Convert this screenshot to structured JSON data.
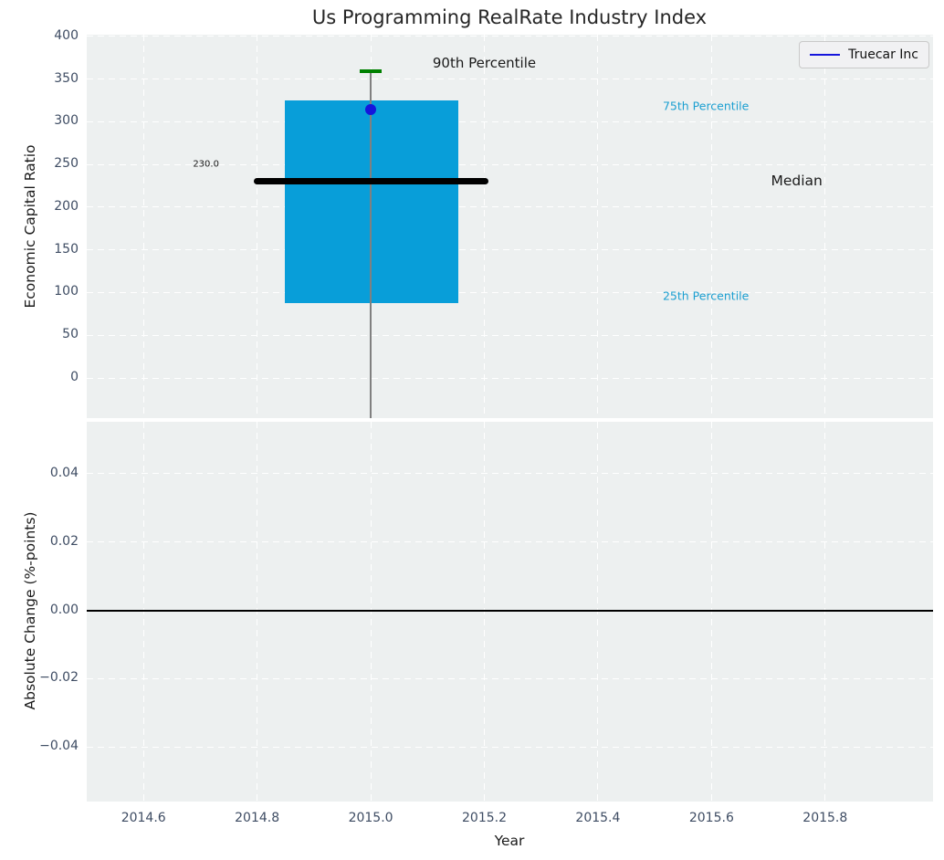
{
  "title": "Us Programming RealRate Industry Index",
  "legend": {
    "label": "Truecar Inc"
  },
  "colors": {
    "axes_background": "#edf0f0",
    "grid": "#ffffff",
    "box_fill": "#089ed9",
    "median_line": "#000000",
    "percentile_cap": "#008000",
    "whisker": "#808080",
    "company_dot": "#1515dc",
    "legend_line": "#1515dc",
    "tick_label": "#3e4c63",
    "percentile_label": "#1b9fd1",
    "text": "#1a1a1a",
    "zero_line": "#000000"
  },
  "chart_data": [
    {
      "type": "boxplot",
      "panel": "top",
      "title": "Us Programming RealRate Industry Index",
      "ylabel": "Economic Capital Ratio",
      "grid": "white dashed, on",
      "legend_position": "upper right",
      "xlim": [
        2014.5,
        2015.99
      ],
      "ylim": [
        -47,
        402
      ],
      "yticks": [
        {
          "value": 0,
          "label": "0"
        },
        {
          "value": 50,
          "label": "50"
        },
        {
          "value": 100,
          "label": "100"
        },
        {
          "value": 150,
          "label": "150"
        },
        {
          "value": 200,
          "label": "200"
        },
        {
          "value": 250,
          "label": "250"
        },
        {
          "value": 300,
          "label": "300"
        },
        {
          "value": 350,
          "label": "350"
        },
        {
          "value": 400,
          "label": "400"
        }
      ],
      "xticks": [
        {
          "value": 2014.6,
          "label": "2014.6"
        },
        {
          "value": 2014.8,
          "label": "2014.8"
        },
        {
          "value": 2015.0,
          "label": "2015.0"
        },
        {
          "value": 2015.2,
          "label": "2015.2"
        },
        {
          "value": 2015.4,
          "label": "2015.4"
        },
        {
          "value": 2015.6,
          "label": "2015.6"
        },
        {
          "value": 2015.8,
          "label": "2015.8"
        }
      ],
      "box": {
        "x_center": 2015.0,
        "x_left": 2014.849,
        "x_right": 2015.154,
        "q1": 88,
        "q3": 325,
        "p90": 359,
        "cap_x_left": 2014.981,
        "cap_x_right": 2015.019,
        "whisker_clipped_at_bottom": true
      },
      "median_line": {
        "value": 230,
        "x_start": 2014.794,
        "x_end": 2015.207,
        "label": "230.0",
        "label_x": 2014.71,
        "label_y": 250
      },
      "company_point": {
        "name": "Truecar Inc",
        "x": 2015.0,
        "value": 314
      },
      "annotations": [
        {
          "id": "p90-label",
          "text": "90th Percentile",
          "x": 2015.2,
          "y": 369,
          "color_key": "text",
          "size": 15
        },
        {
          "id": "p75-label",
          "text": "75th Percentile",
          "x": 2015.59,
          "y": 319,
          "color_key": "percentile_label",
          "size": 12.5
        },
        {
          "id": "median-label",
          "text": "Median",
          "x": 2015.75,
          "y": 231,
          "color_key": "text",
          "size": 15.5
        },
        {
          "id": "p25-label",
          "text": "25th Percentile",
          "x": 2015.59,
          "y": 96,
          "color_key": "percentile_label",
          "size": 12.5
        }
      ]
    },
    {
      "type": "line",
      "panel": "bottom",
      "ylabel": "Absolute Change (%-points)",
      "xlabel": "Year",
      "grid": "white dashed, on",
      "xlim": [
        2014.5,
        2015.99
      ],
      "ylim": [
        -0.056,
        0.0552
      ],
      "yticks": [
        {
          "value": 0.04,
          "label": "0.04"
        },
        {
          "value": 0.02,
          "label": "0.02"
        },
        {
          "value": 0.0,
          "label": "0.00"
        },
        {
          "value": -0.02,
          "label": "−0.02"
        },
        {
          "value": -0.04,
          "label": "−0.04"
        }
      ],
      "xticks": [
        {
          "value": 2014.6,
          "label": "2014.6"
        },
        {
          "value": 2014.8,
          "label": "2014.8"
        },
        {
          "value": 2015.0,
          "label": "2015.0"
        },
        {
          "value": 2015.2,
          "label": "2015.2"
        },
        {
          "value": 2015.4,
          "label": "2015.4"
        },
        {
          "value": 2015.6,
          "label": "2015.6"
        },
        {
          "value": 2015.8,
          "label": "2015.8"
        }
      ],
      "zero_line_value": 0.0
    }
  ]
}
